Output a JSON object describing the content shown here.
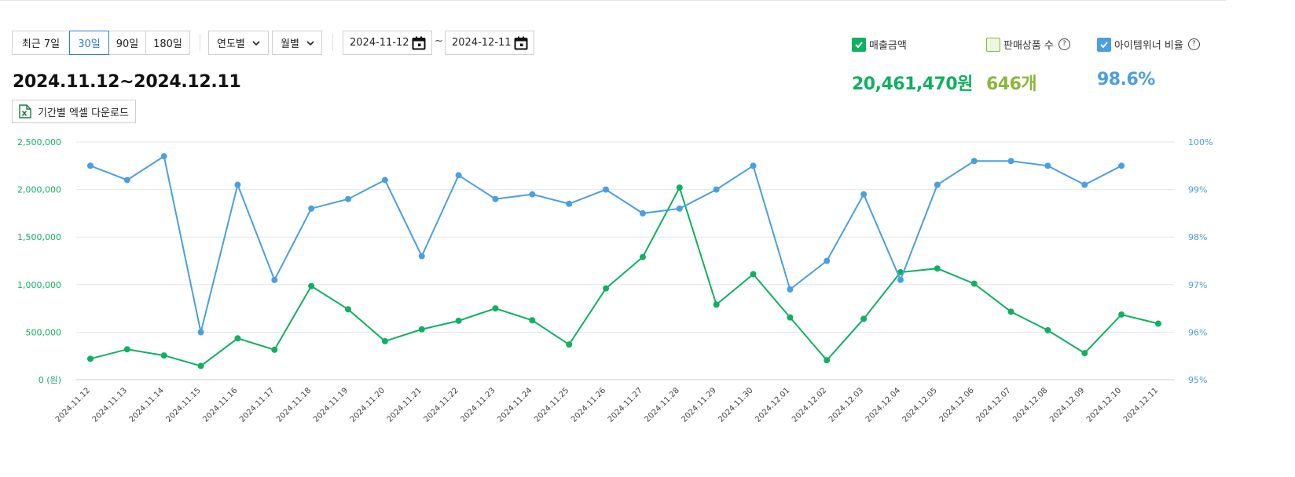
{
  "period_buttons": [
    "최근 7일",
    "30일",
    "90일",
    "180일"
  ],
  "active_period": "30일",
  "year_dropdown": "연도별",
  "month_dropdown": "월별",
  "date_from": "2024-11-12",
  "date_to": "2024-12-11",
  "date_sep": "~",
  "range_title": "2024.11.12~2024.12.11",
  "excel_download_label": "기간별 엑셀 다운로드",
  "legend": {
    "sales": {
      "label": "매출금액",
      "checked": true,
      "color": "#10b060",
      "value": "20,461,470원"
    },
    "items": {
      "label": "판매상품 수",
      "help": "?",
      "checked": false,
      "color": "#8cb63c",
      "value": "646개"
    },
    "winner": {
      "label": "아이템위너 비율",
      "help": "?",
      "checked": true,
      "color": "#4a9fdf",
      "value": "98.6%"
    }
  },
  "icons": {
    "calendar": "calendar-icon",
    "chevron": "chevron-down-icon",
    "excel": "excel-file-icon",
    "help": "question-circle-icon",
    "check": "check-icon"
  },
  "chart_data": {
    "type": "line",
    "categories": [
      "2024.11.12",
      "2024.11.13",
      "2024.11.14",
      "2024.11.15",
      "2024.11.16",
      "2024.11.17",
      "2024.11.18",
      "2024.11.19",
      "2024.11.20",
      "2024.11.21",
      "2024.11.22",
      "2024.11.23",
      "2024.11.24",
      "2024.11.25",
      "2024.11.26",
      "2024.11.27",
      "2024.11.28",
      "2024.11.29",
      "2024.11.30",
      "2024.12.01",
      "2024.12.02",
      "2024.12.03",
      "2024.12.04",
      "2024.12.05",
      "2024.12.06",
      "2024.12.07",
      "2024.12.08",
      "2024.12.09",
      "2024.12.10",
      "2024.12.11"
    ],
    "left_axis": {
      "ticks": [
        "0 (원)",
        "500,000",
        "1,000,000",
        "1,500,000",
        "2,000,000",
        "2,500,000"
      ],
      "ylim": [
        0,
        2500000
      ],
      "color": "#10b060"
    },
    "right_axis": {
      "ticks": [
        "95%",
        "96%",
        "97%",
        "98%",
        "99%",
        "100%"
      ],
      "ylim": [
        95,
        100
      ],
      "color": "#4a9fdf"
    },
    "grid": true,
    "series": [
      {
        "axis": "left",
        "color": "#10b060",
        "values": [
          220000,
          320000,
          255000,
          145000,
          435000,
          315000,
          985000,
          740000,
          405000,
          530000,
          620000,
          750000,
          625000,
          370000,
          960000,
          1290000,
          2020000,
          790000,
          1110000,
          655000,
          205000,
          640000,
          1130000,
          1170000,
          1010000,
          715000,
          520000,
          280000,
          685000,
          590000
        ]
      },
      {
        "axis": "right",
        "color": "#4a9fdf",
        "values": [
          99.5,
          99.2,
          99.7,
          96.0,
          99.1,
          97.1,
          98.6,
          98.8,
          99.2,
          97.6,
          99.3,
          98.8,
          98.9,
          98.7,
          99.0,
          98.5,
          98.6,
          99.0,
          99.5,
          96.9,
          97.5,
          98.9,
          97.1,
          99.1,
          99.6,
          99.6,
          99.5,
          99.1,
          99.5,
          null
        ]
      }
    ]
  }
}
